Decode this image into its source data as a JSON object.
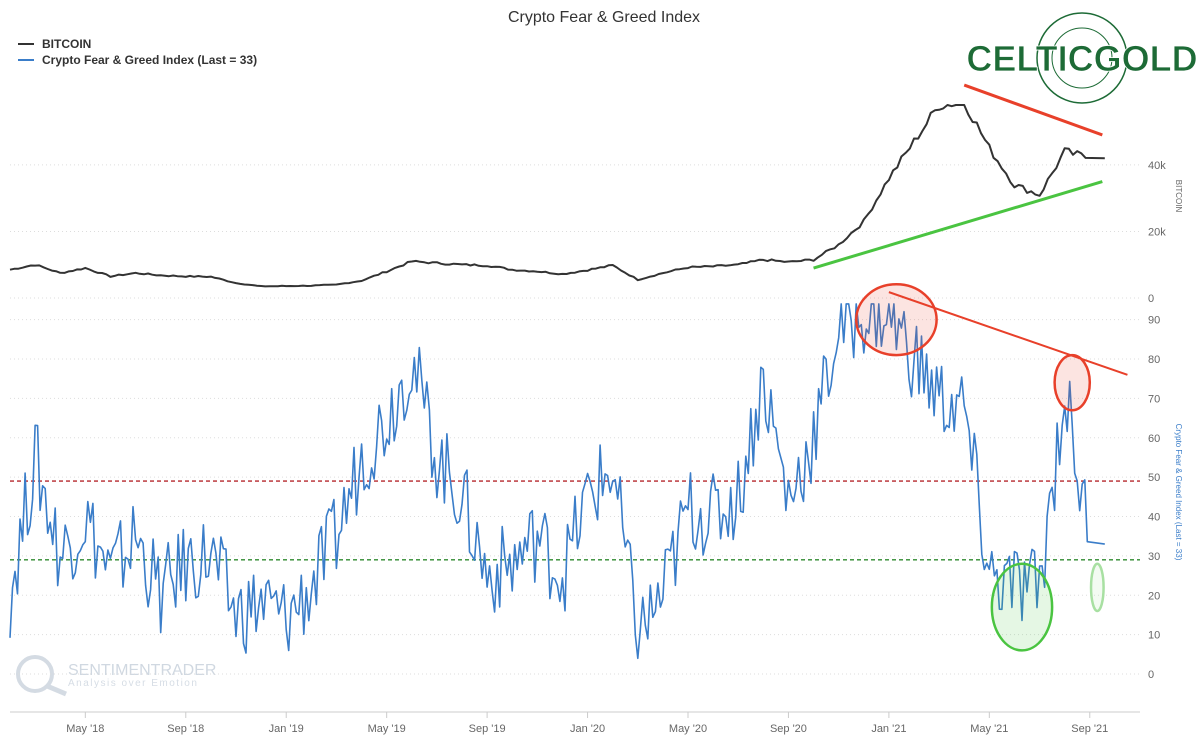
{
  "chart_data": {
    "type": "line",
    "title": "Crypto Fear & Greed Index",
    "legend": [
      {
        "name": "BITCOIN",
        "color": "#333333"
      },
      {
        "name": "Crypto Fear & Greed Index (Last = 33)",
        "color": "#3a7dc9"
      }
    ],
    "legend_position": "top-left",
    "x_tick_labels": [
      "May '18",
      "Sep '18",
      "Jan '19",
      "May '19",
      "Sep '19",
      "Jan '20",
      "May '20",
      "Sep '20",
      "Jan '21",
      "May '21",
      "Sep '21"
    ],
    "x_range": [
      "2018-02",
      "2021-09"
    ],
    "panels": [
      {
        "name": "bitcoin",
        "ylabel": "BITCOIN",
        "y_tick_labels": [
          "0",
          "20k",
          "40k"
        ],
        "ylim": [
          0,
          58000
        ],
        "color": "#333333",
        "series": [
          {
            "name": "BITCOIN",
            "x": [
              "2018-02",
              "2018-03",
              "2018-04",
              "2018-05",
              "2018-06",
              "2018-07",
              "2018-08",
              "2018-09",
              "2018-10",
              "2018-11",
              "2018-12",
              "2019-01",
              "2019-02",
              "2019-03",
              "2019-04",
              "2019-05",
              "2019-06",
              "2019-07",
              "2019-08",
              "2019-09",
              "2019-10",
              "2019-11",
              "2019-12",
              "2020-01",
              "2020-02",
              "2020-03",
              "2020-04",
              "2020-05",
              "2020-06",
              "2020-07",
              "2020-08",
              "2020-09",
              "2020-10",
              "2020-11",
              "2020-12",
              "2021-01",
              "2021-02",
              "2021-03",
              "2021-04",
              "2021-05",
              "2021-06",
              "2021-07",
              "2021-08",
              "2021-09"
            ],
            "values": [
              8500,
              10000,
              7500,
              9000,
              6500,
              7500,
              6800,
              6500,
              6400,
              4500,
              3500,
              3600,
              3700,
              4000,
              5200,
              8000,
              11000,
              10500,
              10000,
              9800,
              8500,
              8000,
              7200,
              8400,
              9800,
              5500,
              7500,
              9200,
              9500,
              10000,
              11500,
              10800,
              11500,
              16000,
              23000,
              36000,
              47000,
              58000,
              59000,
              45000,
              34000,
              31000,
              44000,
              42000
            ]
          }
        ],
        "trendlines": [
          {
            "color": "#e8402a",
            "from": [
              "2021-04",
              64000
            ],
            "to": [
              "2021-09",
              49000
            ]
          },
          {
            "color": "#4ac441",
            "from": [
              "2020-10",
              9000
            ],
            "to": [
              "2021-09",
              35000
            ]
          }
        ]
      },
      {
        "name": "fear-greed",
        "ylabel": "Crypto Fear & Greed Index (Last = 33)",
        "y_tick_labels": [
          "0",
          "10",
          "20",
          "30",
          "40",
          "50",
          "60",
          "70",
          "80",
          "90"
        ],
        "ylim": [
          0,
          95
        ],
        "color": "#3a7dc9",
        "series": [
          {
            "name": "Crypto Fear & Greed Index",
            "x": [
              "2018-02",
              "2018-03",
              "2018-04",
              "2018-05",
              "2018-06",
              "2018-07",
              "2018-08",
              "2018-09",
              "2018-10",
              "2018-11",
              "2018-12",
              "2019-01",
              "2019-02",
              "2019-03",
              "2019-04",
              "2019-05",
              "2019-06",
              "2019-07",
              "2019-08",
              "2019-09",
              "2019-10",
              "2019-11",
              "2019-12",
              "2020-01",
              "2020-02",
              "2020-03",
              "2020-04",
              "2020-05",
              "2020-06",
              "2020-07",
              "2020-08",
              "2020-09",
              "2020-10",
              "2020-11",
              "2020-12",
              "2021-01",
              "2021-02",
              "2021-03",
              "2021-04",
              "2021-05",
              "2021-06",
              "2021-07",
              "2021-08",
              "2021-09"
            ],
            "values": [
              20,
              55,
              30,
              40,
              25,
              35,
              20,
              28,
              30,
              15,
              18,
              14,
              22,
              35,
              55,
              65,
              80,
              55,
              45,
              25,
              28,
              35,
              25,
              45,
              52,
              10,
              20,
              42,
              40,
              45,
              75,
              44,
              60,
              88,
              92,
              92,
              80,
              70,
              67,
              25,
              22,
              22,
              72,
              33
            ]
          }
        ],
        "reference_lines": [
          {
            "value": 49,
            "color": "#b5262b",
            "style": "dashed"
          },
          {
            "value": 29,
            "color": "#2f8a2f",
            "style": "dashed"
          }
        ],
        "trendlines": [
          {
            "color": "#e8402a",
            "from": [
              "2021-01",
              97
            ],
            "to": [
              "2021-10",
              76
            ]
          }
        ],
        "highlights": [
          {
            "shape": "ellipse",
            "color": "#e8402a",
            "center": [
              "2021-01",
              90
            ],
            "radius_months": 1.6,
            "radius_units": 9
          },
          {
            "shape": "ellipse",
            "color": "#e8402a",
            "center": [
              "2021-08",
              74
            ],
            "radius_months": 0.7,
            "radius_units": 7
          },
          {
            "shape": "ellipse",
            "color": "#4ac441",
            "center": [
              "2021-06",
              17
            ],
            "radius_months": 1.2,
            "radius_units": 11
          },
          {
            "shape": "ellipse",
            "color": "#a8e0a2",
            "center": [
              "2021-09",
              22
            ],
            "radius_months": 0.25,
            "radius_units": 6
          }
        ]
      }
    ],
    "grid": "horizontal-dotted",
    "logo_celtic": "CELTICGOLD",
    "watermark_text": "SENTIMENTRADER",
    "watermark_sub": "Analysis over Emotion"
  }
}
